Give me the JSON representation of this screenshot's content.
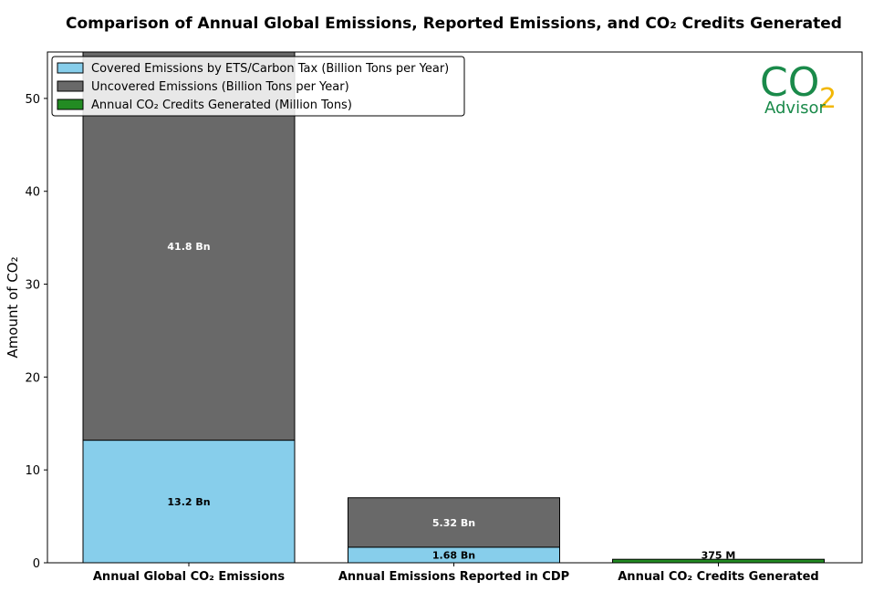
{
  "chart_data": {
    "type": "bar",
    "stacked": true,
    "title": "Comparison of Annual Global Emissions, Reported Emissions, and CO₂ Credits Generated",
    "ylabel": "Amount of CO₂",
    "xlabel": "",
    "ylim": [
      0,
      55
    ],
    "yticks": [
      0,
      10,
      20,
      30,
      40,
      50
    ],
    "categories": [
      "Annual Global CO₂ Emissions",
      "Annual Emissions Reported in CDP",
      "Annual CO₂ Credits Generated"
    ],
    "series": [
      {
        "name": "Covered Emissions by ETS/Carbon Tax (Billion Tons per Year)",
        "color": "#87ceeb",
        "values": [
          13.2,
          1.68,
          0
        ],
        "labels": [
          "13.2 Bn",
          "1.68 Bn",
          ""
        ],
        "label_color": "#000000"
      },
      {
        "name": "Uncovered Emissions (Billion Tons per Year)",
        "color": "#696969",
        "values": [
          41.8,
          5.32,
          0
        ],
        "labels": [
          "41.8 Bn",
          "5.32 Bn",
          ""
        ],
        "label_color": "#ffffff"
      },
      {
        "name": "Annual CO₂ Credits Generated (Million Tons)",
        "color": "#228b22",
        "values": [
          0,
          0,
          0.375
        ],
        "labels": [
          "",
          "",
          "375 M"
        ],
        "label_color": "#000000"
      }
    ],
    "grid": false,
    "legend_position": "top-left"
  },
  "logo": {
    "co_text": "CO",
    "two_text": "2",
    "advisor_text": "Advisor",
    "green": "#1a8a4a",
    "yellow": "#f2b705"
  }
}
